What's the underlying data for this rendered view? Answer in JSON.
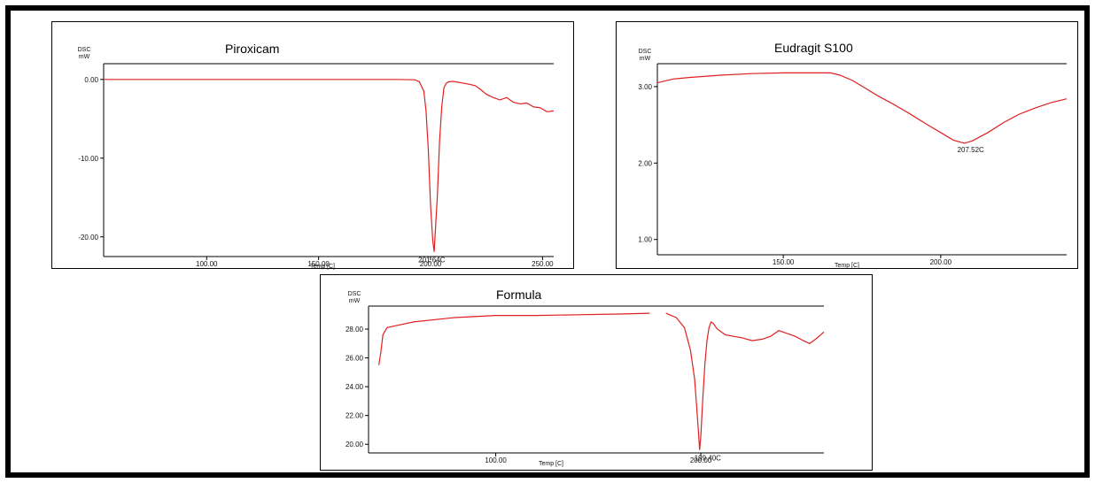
{
  "colors": {
    "trace": "#e02020",
    "frame": "#000000",
    "background": "#ffffff"
  },
  "chart_data": [
    {
      "type": "line",
      "title": "Piroxicam",
      "ylabel": "DSC",
      "yunit": "mW",
      "xlabel": "Temp [C]",
      "xlim": [
        54,
        255
      ],
      "ylim": [
        -22.5,
        2
      ],
      "xticks": [
        {
          "value": 100,
          "label": "100.00"
        },
        {
          "value": 150,
          "label": "150.00"
        },
        {
          "value": 200,
          "label": "200.00"
        },
        {
          "value": 250,
          "label": "250.00"
        }
      ],
      "yticks": [
        {
          "value": 0,
          "label": "0.00"
        },
        {
          "value": -10,
          "label": "-10.00"
        },
        {
          "value": -20,
          "label": "-20.00"
        }
      ],
      "annotations": [
        {
          "text": "201.64C",
          "x": 201.64,
          "y": -21.9
        }
      ],
      "series": [
        {
          "x": [
            54,
            100,
            150,
            185,
            193,
            195,
            197,
            198,
            199,
            200,
            201,
            201.64,
            202,
            203,
            204,
            205,
            206,
            207,
            208,
            210,
            212,
            215,
            217,
            220,
            222,
            225,
            228,
            231,
            234,
            237,
            240,
            243,
            246,
            249,
            252,
            255
          ],
          "y": [
            0,
            0,
            0,
            0,
            -0.05,
            -0.3,
            -1.5,
            -4,
            -9,
            -16,
            -20.5,
            -21.9,
            -20,
            -15,
            -8,
            -3.5,
            -1,
            -0.5,
            -0.3,
            -0.25,
            -0.35,
            -0.5,
            -0.6,
            -0.8,
            -1.2,
            -1.9,
            -2.3,
            -2.6,
            -2.3,
            -2.9,
            -3.1,
            -3.0,
            -3.5,
            -3.6,
            -4.1,
            -4.0
          ]
        }
      ]
    },
    {
      "type": "line",
      "title": "Eudragit S100",
      "ylabel": "DSC",
      "yunit": "mW",
      "xlabel": "Temp [C]",
      "xlim": [
        110,
        240
      ],
      "ylim": [
        0.8,
        3.3
      ],
      "xticks": [
        {
          "value": 150,
          "label": "150.00"
        },
        {
          "value": 200,
          "label": "200.00"
        }
      ],
      "yticks": [
        {
          "value": 3,
          "label": "3.00"
        },
        {
          "value": 2,
          "label": "2.00"
        },
        {
          "value": 1,
          "label": "1.00"
        }
      ],
      "annotations": [
        {
          "text": "207.52C",
          "x": 207.52,
          "y": 2.26
        }
      ],
      "series": [
        {
          "x": [
            110,
            115,
            120,
            130,
            140,
            150,
            160,
            165,
            168,
            172,
            176,
            180,
            185,
            190,
            195,
            200,
            204,
            207.52,
            210,
            215,
            220,
            225,
            230,
            235,
            240
          ],
          "y": [
            3.05,
            3.1,
            3.12,
            3.15,
            3.17,
            3.18,
            3.18,
            3.18,
            3.15,
            3.08,
            2.98,
            2.88,
            2.77,
            2.65,
            2.52,
            2.4,
            2.3,
            2.26,
            2.29,
            2.4,
            2.53,
            2.64,
            2.72,
            2.79,
            2.84
          ]
        }
      ]
    },
    {
      "type": "line",
      "title": "Formula",
      "ylabel": "DSC",
      "yunit": "mW",
      "xlabel": "Temp [C]",
      "xlim": [
        38,
        260
      ],
      "ylim": [
        19.4,
        29.6
      ],
      "xticks": [
        {
          "value": 100,
          "label": "100.00"
        },
        {
          "value": 200,
          "label": "200.00"
        }
      ],
      "yticks": [
        {
          "value": 28,
          "label": "28.00"
        },
        {
          "value": 26,
          "label": "26.00"
        },
        {
          "value": 24,
          "label": "24.00"
        },
        {
          "value": 22,
          "label": "22.00"
        },
        {
          "value": 20,
          "label": "20.00"
        }
      ],
      "annotations": [
        {
          "text": "199.40C",
          "x": 199.4,
          "y": 19.6
        }
      ],
      "series": [
        {
          "x": [
            43,
            44,
            45,
            47,
            50,
            60,
            80,
            100,
            120,
            140,
            160,
            175
          ],
          "y": [
            25.5,
            26.4,
            27.6,
            28.1,
            28.2,
            28.5,
            28.8,
            28.95,
            28.95,
            29.0,
            29.05,
            29.1
          ]
        },
        {
          "x": [
            183,
            188,
            192,
            195,
            197,
            198,
            199,
            199.4,
            200,
            201,
            202,
            203,
            204,
            205,
            206,
            208,
            212,
            216,
            220,
            225,
            230,
            234,
            238,
            242,
            246,
            250,
            253,
            256,
            260
          ],
          "y": [
            29.1,
            28.8,
            28.1,
            26.5,
            24.5,
            22.5,
            20.5,
            19.6,
            20.6,
            23.3,
            25.6,
            27.2,
            28.1,
            28.5,
            28.4,
            28.0,
            27.6,
            27.5,
            27.4,
            27.2,
            27.3,
            27.5,
            27.9,
            27.7,
            27.5,
            27.2,
            27.0,
            27.3,
            27.8
          ]
        }
      ]
    }
  ]
}
